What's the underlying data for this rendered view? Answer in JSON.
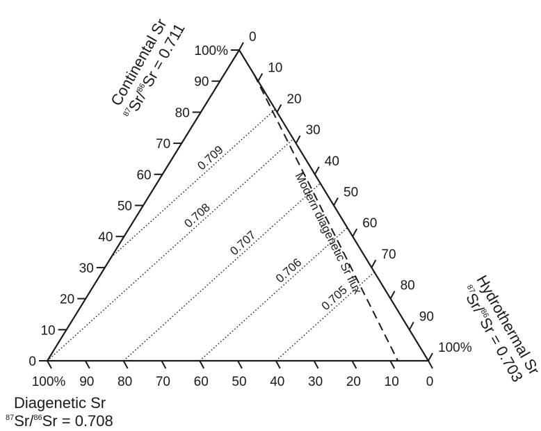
{
  "diagram": {
    "type": "ternary",
    "vertex_labels": {
      "continental": {
        "name": "Continental Sr",
        "ratio_sup1": "87",
        "ratio_mid": "Sr/",
        "ratio_sup2": "86",
        "ratio_tail": "Sr = 0.711"
      },
      "diagenetic": {
        "name": "Diagenetic Sr",
        "ratio_sup1": "87",
        "ratio_mid": "Sr/",
        "ratio_sup2": "86",
        "ratio_tail": "Sr = 0.708"
      },
      "hydrothermal": {
        "name": "Hydrothermal Sr",
        "ratio_sup1": "87",
        "ratio_mid": "Sr/",
        "ratio_sup2": "86",
        "ratio_tail": "Sr = 0.703"
      }
    },
    "left_axis_ticks": [
      "0",
      "10",
      "20",
      "30",
      "40",
      "50",
      "60",
      "70",
      "80",
      "90",
      "100%"
    ],
    "right_axis_ticks": [
      "0",
      "10",
      "20",
      "30",
      "40",
      "50",
      "60",
      "70",
      "80",
      "90",
      "100%"
    ],
    "bottom_axis_ticks": [
      "100%",
      "90",
      "80",
      "70",
      "60",
      "50",
      "40",
      "30",
      "20",
      "10",
      "0"
    ],
    "contours": [
      {
        "label": "0.709",
        "continental_pct": 0.333,
        "hydro_pct": 0.0
      },
      {
        "label": "0.708",
        "continental_pct": 0.0,
        "hydro_pct": 0.0
      },
      {
        "label": "0.707",
        "continental_pct": 0.0,
        "hydro_pct": 0.2
      },
      {
        "label": "0.706",
        "continental_pct": 0.0,
        "hydro_pct": 0.4
      },
      {
        "label": "0.705",
        "continental_pct": 0.0,
        "hydro_pct": 0.6
      }
    ],
    "flux_line": {
      "label": "Modern diagenetic Sr flux",
      "diagenetic_pct": 0.08
    }
  }
}
